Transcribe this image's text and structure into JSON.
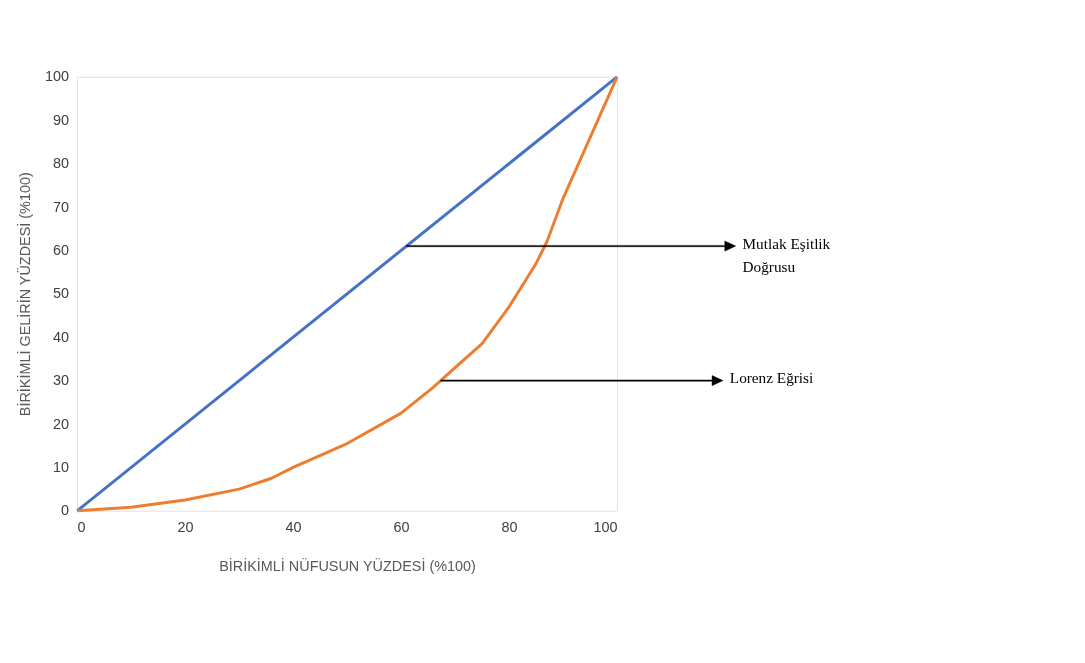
{
  "chart_data": {
    "type": "line",
    "xlabel": "BİRİKİMLİ NÜFUSUN YÜZDESİ (%100)",
    "ylabel": "BİRİKİMLİ GELİRİN YÜZDESİ (%100)",
    "xlim": [
      0,
      100
    ],
    "ylim": [
      0,
      100
    ],
    "xticks": [
      0,
      20,
      40,
      60,
      80,
      100
    ],
    "yticks": [
      0,
      10,
      20,
      30,
      40,
      50,
      60,
      70,
      80,
      90,
      100
    ],
    "grid": false,
    "marker": "none",
    "line_style": "solid",
    "series": [
      {
        "color": "#4472c4",
        "x": [
          0,
          100
        ],
        "values": [
          0,
          100
        ]
      },
      {
        "color": "#ed7d31",
        "x": [
          0,
          10,
          20,
          30,
          36,
          40,
          50,
          60,
          66,
          70,
          75,
          80,
          85,
          87,
          90,
          95,
          100
        ],
        "values": [
          0,
          0.8,
          2.5,
          5,
          7.5,
          10,
          15.5,
          22.5,
          28.5,
          33,
          38.5,
          47,
          57,
          62,
          72,
          86,
          100
        ]
      }
    ],
    "annotations": [
      "Mutlak Eşitlik Doğrusu",
      "Lorenz Eğrisi"
    ]
  }
}
